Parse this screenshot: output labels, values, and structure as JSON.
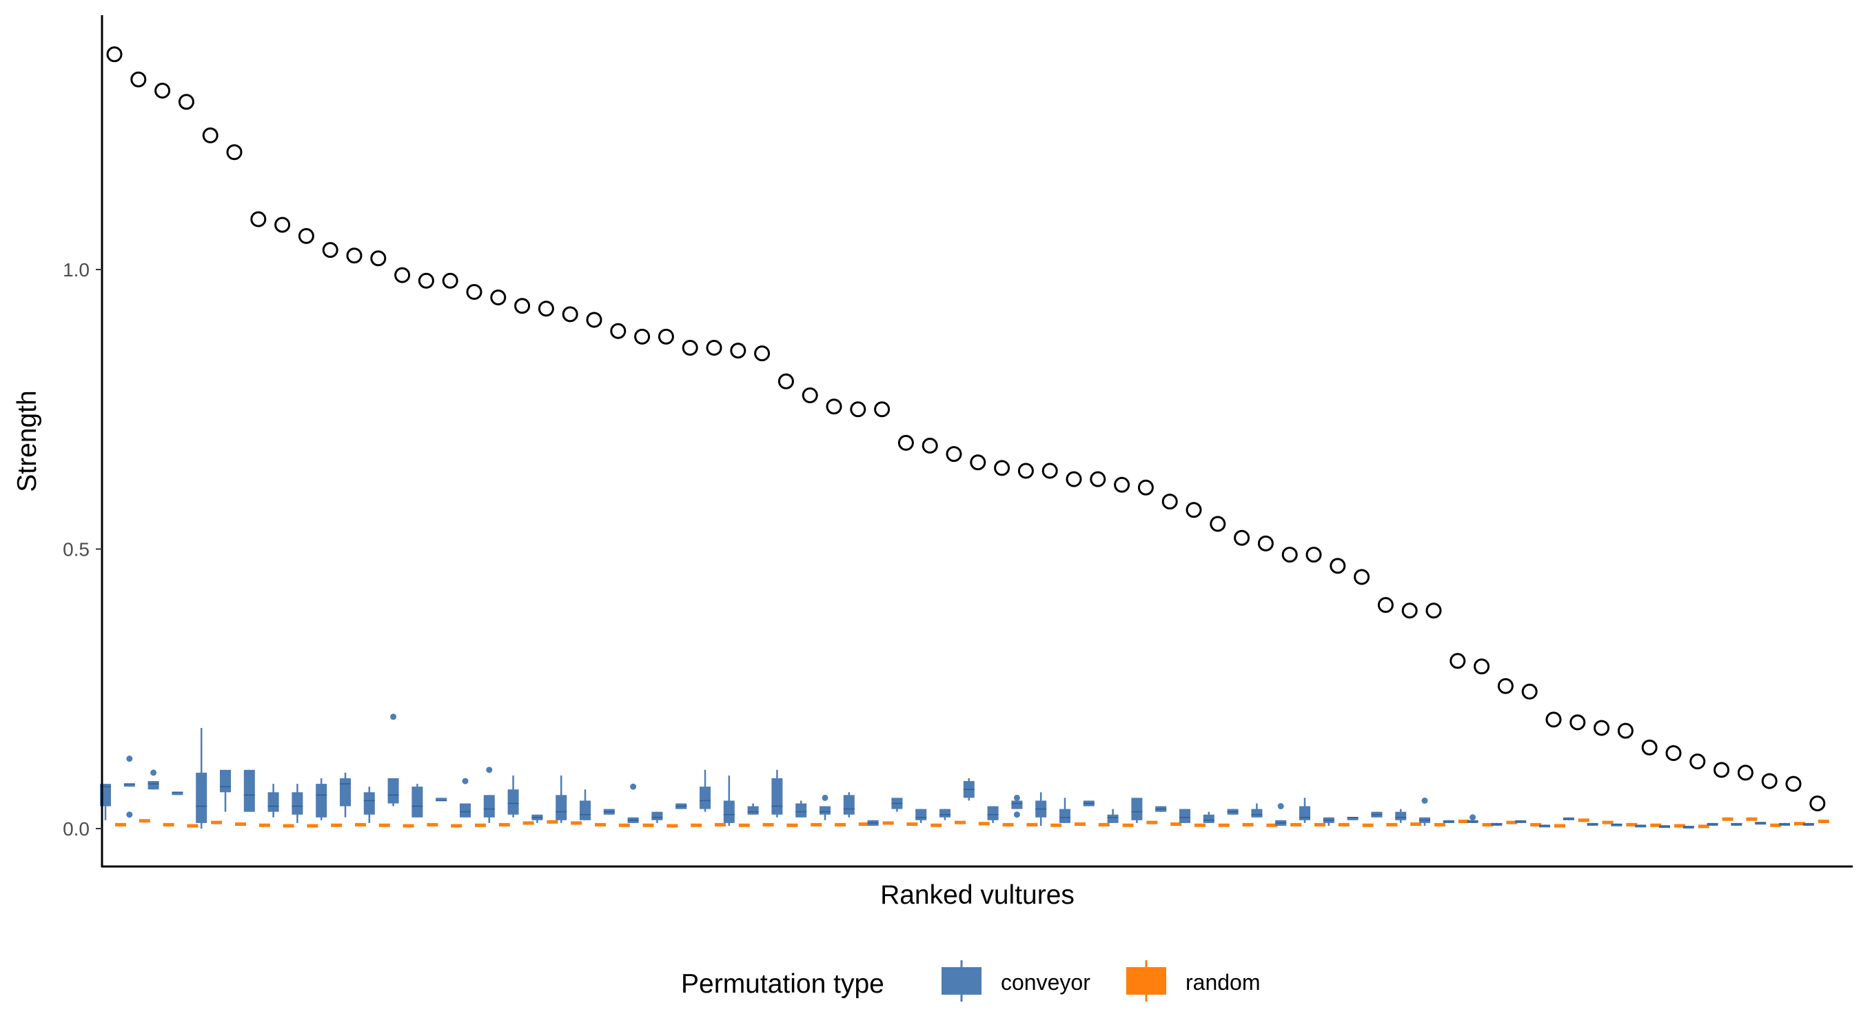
{
  "chart_data": {
    "type": "box+scatter",
    "xlabel": "Ranked vultures",
    "ylabel": "Strength",
    "yticks": [
      0.0,
      0.5,
      1.0
    ],
    "ytick_labels": [
      "0.0",
      "0.5",
      "1.0"
    ],
    "ylim": [
      -0.07,
      1.45
    ],
    "grid": false,
    "legend": {
      "title": "Permutation type",
      "position": "bottom",
      "entries": [
        {
          "label": "conveyor",
          "color": "#4E7DB4"
        },
        {
          "label": "random",
          "color": "#FF7F0E"
        }
      ]
    },
    "observed": [
      1.385,
      1.34,
      1.32,
      1.3,
      1.24,
      1.21,
      1.09,
      1.08,
      1.06,
      1.035,
      1.025,
      1.02,
      0.99,
      0.98,
      0.98,
      0.96,
      0.95,
      0.935,
      0.93,
      0.92,
      0.91,
      0.89,
      0.88,
      0.88,
      0.86,
      0.86,
      0.855,
      0.85,
      0.8,
      0.775,
      0.755,
      0.75,
      0.75,
      0.69,
      0.685,
      0.67,
      0.655,
      0.645,
      0.64,
      0.64,
      0.625,
      0.625,
      0.615,
      0.61,
      0.585,
      0.57,
      0.545,
      0.52,
      0.51,
      0.49,
      0.49,
      0.47,
      0.45,
      0.4,
      0.39,
      0.39,
      0.3,
      0.29,
      0.255,
      0.245,
      0.195,
      0.19,
      0.18,
      0.175,
      0.145,
      0.135,
      0.12,
      0.105,
      0.1,
      0.085,
      0.08,
      0.045
    ],
    "conveyor_boxes": [
      {
        "min": 0.015,
        "q1": 0.04,
        "med": 0.075,
        "q3": 0.08,
        "max": 0.08,
        "outliers": []
      },
      {
        "min": 0.075,
        "q1": 0.075,
        "med": 0.08,
        "q3": 0.08,
        "max": 0.08,
        "outliers": [
          0.125,
          0.025
        ]
      },
      {
        "min": 0.07,
        "q1": 0.07,
        "med": 0.08,
        "q3": 0.085,
        "max": 0.085,
        "outliers": [
          0.1
        ]
      },
      {
        "min": 0.06,
        "q1": 0.06,
        "med": 0.065,
        "q3": 0.065,
        "max": 0.065,
        "outliers": []
      },
      {
        "min": 0.0,
        "q1": 0.01,
        "med": 0.04,
        "q3": 0.1,
        "max": 0.18,
        "outliers": []
      },
      {
        "min": 0.03,
        "q1": 0.065,
        "med": 0.075,
        "q3": 0.105,
        "max": 0.105,
        "outliers": []
      },
      {
        "min": 0.03,
        "q1": 0.03,
        "med": 0.06,
        "q3": 0.105,
        "max": 0.105,
        "outliers": []
      },
      {
        "min": 0.02,
        "q1": 0.03,
        "med": 0.04,
        "q3": 0.065,
        "max": 0.08,
        "outliers": []
      },
      {
        "min": 0.01,
        "q1": 0.025,
        "med": 0.04,
        "q3": 0.065,
        "max": 0.08,
        "outliers": []
      },
      {
        "min": 0.015,
        "q1": 0.02,
        "med": 0.06,
        "q3": 0.08,
        "max": 0.09,
        "outliers": []
      },
      {
        "min": 0.02,
        "q1": 0.04,
        "med": 0.08,
        "q3": 0.09,
        "max": 0.1,
        "outliers": []
      },
      {
        "min": 0.01,
        "q1": 0.025,
        "med": 0.05,
        "q3": 0.065,
        "max": 0.075,
        "outliers": []
      },
      {
        "min": 0.04,
        "q1": 0.045,
        "med": 0.06,
        "q3": 0.09,
        "max": 0.09,
        "outliers": [
          0.2
        ]
      },
      {
        "min": 0.02,
        "q1": 0.02,
        "med": 0.04,
        "q3": 0.075,
        "max": 0.08,
        "outliers": []
      },
      {
        "min": 0.05,
        "q1": 0.05,
        "med": 0.05,
        "q3": 0.055,
        "max": 0.055,
        "outliers": []
      },
      {
        "min": 0.02,
        "q1": 0.02,
        "med": 0.03,
        "q3": 0.045,
        "max": 0.045,
        "outliers": [
          0.085
        ]
      },
      {
        "min": 0.01,
        "q1": 0.02,
        "med": 0.035,
        "q3": 0.06,
        "max": 0.06,
        "outliers": [
          0.105
        ]
      },
      {
        "min": 0.02,
        "q1": 0.025,
        "med": 0.045,
        "q3": 0.07,
        "max": 0.095,
        "outliers": []
      },
      {
        "min": 0.01,
        "q1": 0.015,
        "med": 0.02,
        "q3": 0.025,
        "max": 0.025,
        "outliers": []
      },
      {
        "min": 0.01,
        "q1": 0.015,
        "med": 0.03,
        "q3": 0.06,
        "max": 0.095,
        "outliers": []
      },
      {
        "min": 0.015,
        "q1": 0.015,
        "med": 0.025,
        "q3": 0.05,
        "max": 0.07,
        "outliers": []
      },
      {
        "min": 0.025,
        "q1": 0.025,
        "med": 0.03,
        "q3": 0.035,
        "max": 0.035,
        "outliers": []
      },
      {
        "min": 0.01,
        "q1": 0.01,
        "med": 0.015,
        "q3": 0.02,
        "max": 0.02,
        "outliers": [
          0.075
        ]
      },
      {
        "min": 0.01,
        "q1": 0.015,
        "med": 0.02,
        "q3": 0.03,
        "max": 0.03,
        "outliers": []
      },
      {
        "min": 0.035,
        "q1": 0.035,
        "med": 0.04,
        "q3": 0.045,
        "max": 0.045,
        "outliers": []
      },
      {
        "min": 0.03,
        "q1": 0.035,
        "med": 0.05,
        "q3": 0.075,
        "max": 0.105,
        "outliers": []
      },
      {
        "min": 0.005,
        "q1": 0.01,
        "med": 0.025,
        "q3": 0.05,
        "max": 0.095,
        "outliers": []
      },
      {
        "min": 0.025,
        "q1": 0.025,
        "med": 0.03,
        "q3": 0.04,
        "max": 0.045,
        "outliers": []
      },
      {
        "min": 0.02,
        "q1": 0.025,
        "med": 0.04,
        "q3": 0.09,
        "max": 0.105,
        "outliers": []
      },
      {
        "min": 0.02,
        "q1": 0.02,
        "med": 0.03,
        "q3": 0.045,
        "max": 0.05,
        "outliers": []
      },
      {
        "min": 0.015,
        "q1": 0.025,
        "med": 0.03,
        "q3": 0.04,
        "max": 0.04,
        "outliers": [
          0.055
        ]
      },
      {
        "min": 0.02,
        "q1": 0.025,
        "med": 0.035,
        "q3": 0.06,
        "max": 0.065,
        "outliers": []
      },
      {
        "min": 0.005,
        "q1": 0.005,
        "med": 0.01,
        "q3": 0.015,
        "max": 0.015,
        "outliers": []
      },
      {
        "min": 0.03,
        "q1": 0.035,
        "med": 0.045,
        "q3": 0.055,
        "max": 0.055,
        "outliers": []
      },
      {
        "min": 0.01,
        "q1": 0.015,
        "med": 0.02,
        "q3": 0.035,
        "max": 0.035,
        "outliers": []
      },
      {
        "min": 0.015,
        "q1": 0.02,
        "med": 0.025,
        "q3": 0.035,
        "max": 0.035,
        "outliers": []
      },
      {
        "min": 0.05,
        "q1": 0.055,
        "med": 0.07,
        "q3": 0.085,
        "max": 0.09,
        "outliers": []
      },
      {
        "min": 0.01,
        "q1": 0.015,
        "med": 0.025,
        "q3": 0.04,
        "max": 0.04,
        "outliers": []
      },
      {
        "min": 0.035,
        "q1": 0.035,
        "med": 0.045,
        "q3": 0.05,
        "max": 0.05,
        "outliers": [
          0.055,
          0.025
        ]
      },
      {
        "min": 0.005,
        "q1": 0.02,
        "med": 0.035,
        "q3": 0.05,
        "max": 0.065,
        "outliers": []
      },
      {
        "min": 0.01,
        "q1": 0.01,
        "med": 0.02,
        "q3": 0.035,
        "max": 0.055,
        "outliers": []
      },
      {
        "min": 0.04,
        "q1": 0.04,
        "med": 0.045,
        "q3": 0.05,
        "max": 0.05,
        "outliers": []
      },
      {
        "min": 0.01,
        "q1": 0.01,
        "med": 0.02,
        "q3": 0.025,
        "max": 0.035,
        "outliers": []
      },
      {
        "min": 0.01,
        "q1": 0.015,
        "med": 0.03,
        "q3": 0.055,
        "max": 0.055,
        "outliers": []
      },
      {
        "min": 0.03,
        "q1": 0.03,
        "med": 0.035,
        "q3": 0.04,
        "max": 0.04,
        "outliers": []
      },
      {
        "min": 0.01,
        "q1": 0.01,
        "med": 0.02,
        "q3": 0.035,
        "max": 0.035,
        "outliers": []
      },
      {
        "min": 0.01,
        "q1": 0.01,
        "med": 0.015,
        "q3": 0.025,
        "max": 0.03,
        "outliers": []
      },
      {
        "min": 0.025,
        "q1": 0.025,
        "med": 0.03,
        "q3": 0.035,
        "max": 0.035,
        "outliers": []
      },
      {
        "min": 0.02,
        "q1": 0.02,
        "med": 0.025,
        "q3": 0.035,
        "max": 0.045,
        "outliers": []
      },
      {
        "min": 0.005,
        "q1": 0.005,
        "med": 0.01,
        "q3": 0.015,
        "max": 0.015,
        "outliers": [
          0.04
        ]
      },
      {
        "min": 0.01,
        "q1": 0.015,
        "med": 0.02,
        "q3": 0.04,
        "max": 0.055,
        "outliers": []
      },
      {
        "min": 0.005,
        "q1": 0.01,
        "med": 0.015,
        "q3": 0.02,
        "max": 0.02,
        "outliers": []
      },
      {
        "min": 0.015,
        "q1": 0.015,
        "med": 0.02,
        "q3": 0.02,
        "max": 0.02,
        "outliers": []
      },
      {
        "min": 0.02,
        "q1": 0.02,
        "med": 0.025,
        "q3": 0.03,
        "max": 0.03,
        "outliers": []
      },
      {
        "min": 0.01,
        "q1": 0.015,
        "med": 0.02,
        "q3": 0.03,
        "max": 0.035,
        "outliers": []
      },
      {
        "min": 0.005,
        "q1": 0.01,
        "med": 0.015,
        "q3": 0.02,
        "max": 0.02,
        "outliers": [
          0.05
        ]
      },
      {
        "min": 0.01,
        "q1": 0.01,
        "med": 0.012,
        "q3": 0.015,
        "max": 0.015,
        "outliers": []
      },
      {
        "min": 0.01,
        "q1": 0.01,
        "med": 0.012,
        "q3": 0.015,
        "max": 0.015,
        "outliers": [
          0.02
        ]
      },
      {
        "min": 0.005,
        "q1": 0.005,
        "med": 0.008,
        "q3": 0.01,
        "max": 0.01,
        "outliers": []
      },
      {
        "min": 0.01,
        "q1": 0.01,
        "med": 0.012,
        "q3": 0.015,
        "max": 0.015,
        "outliers": []
      },
      {
        "min": 0.003,
        "q1": 0.003,
        "med": 0.005,
        "q3": 0.007,
        "max": 0.007,
        "outliers": []
      },
      {
        "min": 0.015,
        "q1": 0.015,
        "med": 0.017,
        "q3": 0.02,
        "max": 0.02,
        "outliers": []
      },
      {
        "min": 0.005,
        "q1": 0.005,
        "med": 0.008,
        "q3": 0.01,
        "max": 0.01,
        "outliers": []
      },
      {
        "min": 0.005,
        "q1": 0.005,
        "med": 0.007,
        "q3": 0.009,
        "max": 0.009,
        "outliers": []
      },
      {
        "min": 0.003,
        "q1": 0.003,
        "med": 0.005,
        "q3": 0.007,
        "max": 0.007,
        "outliers": []
      },
      {
        "min": 0.002,
        "q1": 0.002,
        "med": 0.004,
        "q3": 0.006,
        "max": 0.006,
        "outliers": []
      },
      {
        "min": 0.001,
        "q1": 0.001,
        "med": 0.003,
        "q3": 0.005,
        "max": 0.005,
        "outliers": []
      },
      {
        "min": 0.005,
        "q1": 0.005,
        "med": 0.008,
        "q3": 0.01,
        "max": 0.01,
        "outliers": []
      },
      {
        "min": 0.005,
        "q1": 0.005,
        "med": 0.008,
        "q3": 0.01,
        "max": 0.01,
        "outliers": []
      },
      {
        "min": 0.008,
        "q1": 0.008,
        "med": 0.01,
        "q3": 0.012,
        "max": 0.012,
        "outliers": []
      },
      {
        "min": 0.005,
        "q1": 0.005,
        "med": 0.008,
        "q3": 0.01,
        "max": 0.01,
        "outliers": []
      },
      {
        "min": 0.005,
        "q1": 0.005,
        "med": 0.008,
        "q3": 0.01,
        "max": 0.01,
        "outliers": []
      }
    ],
    "random_boxes": [
      0.006,
      0.013,
      0.006,
      0.004,
      0.01,
      0.007,
      0.005,
      0.004,
      0.004,
      0.005,
      0.006,
      0.005,
      0.004,
      0.006,
      0.004,
      0.005,
      0.006,
      0.009,
      0.011,
      0.009,
      0.006,
      0.005,
      0.005,
      0.004,
      0.005,
      0.006,
      0.005,
      0.006,
      0.005,
      0.006,
      0.006,
      0.007,
      0.009,
      0.007,
      0.005,
      0.01,
      0.008,
      0.006,
      0.006,
      0.005,
      0.007,
      0.006,
      0.005,
      0.01,
      0.007,
      0.005,
      0.005,
      0.006,
      0.005,
      0.006,
      0.006,
      0.006,
      0.005,
      0.006,
      0.007,
      0.006,
      0.012,
      0.006,
      0.01,
      0.006,
      0.004,
      0.014,
      0.01,
      0.006,
      0.005,
      0.004,
      0.003,
      0.016,
      0.016,
      0.005,
      0.008,
      0.012
    ]
  }
}
